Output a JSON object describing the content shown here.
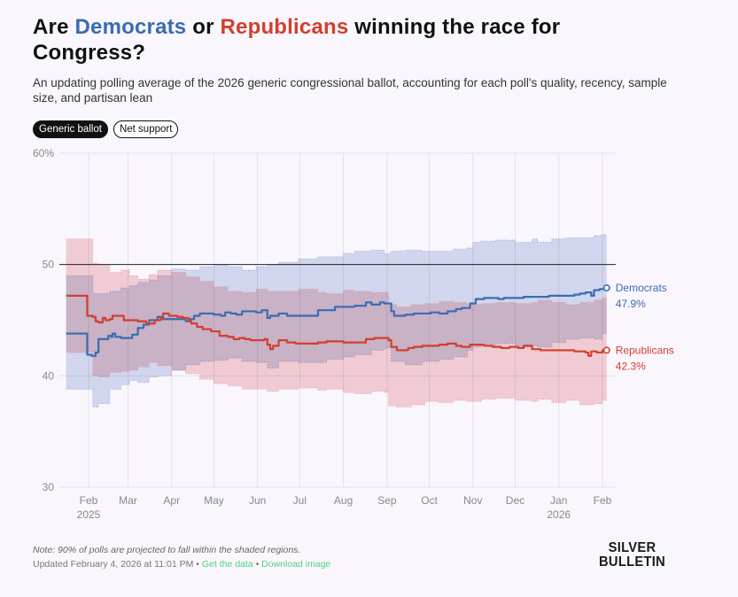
{
  "header": {
    "title_parts": [
      "Are ",
      "Democrats",
      " or ",
      "Republicans",
      " winning the race for Congress?"
    ],
    "subtitle": "An updating polling average of the 2026 generic congressional ballot, accounting for each poll's quality, recency, sample size, and partisan lean"
  },
  "toggles": [
    {
      "label": "Generic ballot",
      "active": true
    },
    {
      "label": "Net support",
      "active": false
    }
  ],
  "colors": {
    "democrats": "#3a6cb0",
    "republicans": "#d13f2c",
    "dem_band": "#c8d3ea",
    "rep_band": "#f2c4c6",
    "link": "#4ed67a"
  },
  "footer": {
    "note": "Note: 90% of polls are projected to fall within the shaded regions.",
    "updated": "Updated February 4, 2026 at 11:01 PM",
    "separator": " • ",
    "get_data": "Get the data",
    "download_image": "Download image",
    "logo_line1": "SILVER",
    "logo_line2": "BULLETIN"
  },
  "chart_data": {
    "type": "line",
    "title": "Are Democrats or Republicans winning the race for Congress?",
    "xlabel": "",
    "ylabel": "",
    "x_unit": "days since 2025-01-01",
    "xlim": [
      15,
      399
    ],
    "ylim": [
      30,
      60
    ],
    "yticks": [
      {
        "value": 30,
        "label": "30"
      },
      {
        "value": 40,
        "label": "40"
      },
      {
        "value": 50,
        "label": "50"
      },
      {
        "value": 60,
        "label": "60%"
      }
    ],
    "reference_line": 50,
    "grid": true,
    "xticks": [
      {
        "day": 31,
        "label": "Feb",
        "sublabel": "2025"
      },
      {
        "day": 59,
        "label": "Mar"
      },
      {
        "day": 90,
        "label": "Apr"
      },
      {
        "day": 120,
        "label": "May"
      },
      {
        "day": 151,
        "label": "Jun"
      },
      {
        "day": 181,
        "label": "Jul"
      },
      {
        "day": 212,
        "label": "Aug"
      },
      {
        "day": 243,
        "label": "Sep"
      },
      {
        "day": 273,
        "label": "Oct"
      },
      {
        "day": 304,
        "label": "Nov"
      },
      {
        "day": 334,
        "label": "Dec"
      },
      {
        "day": 365,
        "label": "Jan",
        "sublabel": "2026"
      },
      {
        "day": 396,
        "label": "Feb"
      }
    ],
    "series": [
      {
        "name": "Democrats",
        "final_label": "47.9%",
        "x": [
          15,
          29,
          30,
          33,
          36,
          38,
          43,
          45,
          47,
          48,
          50,
          52,
          54,
          58,
          62,
          66,
          70,
          74,
          78,
          80,
          83,
          88,
          95,
          100,
          103,
          106,
          110,
          114,
          120,
          125,
          128,
          132,
          136,
          140,
          145,
          150,
          154,
          158,
          160,
          166,
          172,
          180,
          188,
          194,
          200,
          206,
          212,
          220,
          228,
          232,
          238,
          241,
          246,
          248,
          252,
          256,
          262,
          268,
          274,
          280,
          286,
          292,
          296,
          302,
          306,
          312,
          318,
          322,
          326,
          332,
          336,
          340,
          346,
          352,
          358,
          364,
          370,
          376,
          380,
          384,
          388,
          390,
          394,
          396,
          399
        ],
        "values": [
          43.8,
          43.8,
          41.9,
          41.8,
          42.1,
          43.3,
          43.3,
          43.6,
          43.5,
          43.8,
          43.5,
          43.5,
          43.4,
          43.4,
          43.7,
          44.3,
          44.6,
          45.0,
          45.0,
          45.3,
          45.1,
          45.1,
          45.1,
          44.9,
          45.1,
          45.4,
          45.6,
          45.6,
          45.5,
          45.4,
          45.7,
          45.6,
          45.5,
          45.8,
          45.8,
          45.7,
          45.9,
          45.2,
          45.4,
          45.6,
          45.4,
          45.4,
          45.4,
          45.9,
          45.9,
          46.2,
          46.2,
          46.3,
          46.6,
          46.4,
          46.6,
          46.5,
          45.8,
          45.4,
          45.4,
          45.5,
          45.6,
          45.6,
          45.7,
          45.6,
          45.8,
          46.0,
          46.1,
          46.5,
          46.9,
          47.0,
          47.0,
          46.9,
          47.0,
          47.0,
          47.0,
          47.1,
          47.1,
          47.1,
          47.2,
          47.2,
          47.2,
          47.3,
          47.4,
          47.5,
          47.2,
          47.7,
          47.8,
          47.8,
          47.9
        ]
      },
      {
        "name": "Republicans",
        "final_label": "42.3%",
        "x": [
          15,
          29,
          30,
          34,
          36,
          38,
          41,
          43,
          46,
          48,
          52,
          56,
          58,
          62,
          66,
          68,
          72,
          74,
          78,
          82,
          84,
          88,
          94,
          98,
          102,
          104,
          108,
          112,
          118,
          124,
          130,
          134,
          138,
          142,
          146,
          150,
          156,
          158,
          160,
          162,
          166,
          172,
          178,
          186,
          194,
          200,
          206,
          212,
          220,
          228,
          234,
          238,
          241,
          244,
          246,
          250,
          254,
          258,
          262,
          268,
          274,
          280,
          286,
          292,
          296,
          302,
          306,
          312,
          318,
          324,
          330,
          336,
          340,
          346,
          352,
          358,
          364,
          370,
          376,
          380,
          384,
          386,
          388,
          392,
          396,
          399
        ],
        "values": [
          47.2,
          47.2,
          45.4,
          45.3,
          44.9,
          44.8,
          45.2,
          45.0,
          45.1,
          45.4,
          45.4,
          45.0,
          45.0,
          45.0,
          44.9,
          44.9,
          44.7,
          44.7,
          45.0,
          45.1,
          45.6,
          45.4,
          45.3,
          45.2,
          44.9,
          44.7,
          44.4,
          44.2,
          44.0,
          43.6,
          43.5,
          43.3,
          43.4,
          43.3,
          43.2,
          43.2,
          43.3,
          42.8,
          42.4,
          42.7,
          43.2,
          43.0,
          42.9,
          42.9,
          43.0,
          43.1,
          43.1,
          43.0,
          43.0,
          43.3,
          43.4,
          43.4,
          43.4,
          43.2,
          42.6,
          42.3,
          42.3,
          42.5,
          42.6,
          42.7,
          42.7,
          42.8,
          42.9,
          42.7,
          42.6,
          42.8,
          42.8,
          42.7,
          42.6,
          42.5,
          42.6,
          42.5,
          42.7,
          42.4,
          42.3,
          42.3,
          42.3,
          42.3,
          42.2,
          42.2,
          42.1,
          41.8,
          42.2,
          42.1,
          42.3,
          42.3
        ]
      }
    ],
    "bands": [
      {
        "name": "Democrats 90% range",
        "x": [
          15,
          30,
          34,
          38,
          46,
          54,
          60,
          66,
          74,
          80,
          90,
          100,
          110,
          120,
          130,
          140,
          150,
          158,
          166,
          180,
          194,
          200,
          212,
          220,
          232,
          241,
          246,
          256,
          268,
          280,
          290,
          300,
          304,
          310,
          320,
          334,
          346,
          350,
          360,
          370,
          380,
          390,
          396,
          399
        ],
        "upper": [
          49.0,
          49.0,
          47.4,
          47.4,
          47.6,
          47.9,
          48.1,
          48.4,
          48.6,
          49.0,
          49.6,
          49.5,
          49.8,
          50.0,
          49.8,
          49.5,
          49.8,
          50.0,
          50.2,
          50.5,
          50.7,
          50.7,
          51.0,
          51.2,
          51.3,
          51.0,
          51.2,
          51.3,
          51.2,
          51.2,
          51.4,
          51.5,
          52.0,
          52.1,
          52.2,
          52.0,
          52.3,
          52.0,
          52.3,
          52.4,
          52.4,
          52.6,
          52.7,
          52.7
        ],
        "lower": [
          38.8,
          38.8,
          37.2,
          37.5,
          38.8,
          39.2,
          39.6,
          39.4,
          39.9,
          40.0,
          40.5,
          41.0,
          41.3,
          41.4,
          41.6,
          41.3,
          41.2,
          40.7,
          41.3,
          41.2,
          41.2,
          41.5,
          41.7,
          41.9,
          42.3,
          42.5,
          41.3,
          41.0,
          41.3,
          41.5,
          41.7,
          42.3,
          42.6,
          42.7,
          42.9,
          42.6,
          42.7,
          42.6,
          43.0,
          43.3,
          43.4,
          43.3,
          43.8,
          43.9
        ]
      },
      {
        "name": "Republicans 90% range",
        "x": [
          15,
          30,
          34,
          38,
          46,
          54,
          60,
          66,
          74,
          80,
          90,
          100,
          110,
          120,
          130,
          140,
          150,
          158,
          166,
          180,
          194,
          200,
          212,
          220,
          232,
          241,
          244,
          250,
          260,
          270,
          280,
          290,
          300,
          310,
          320,
          334,
          346,
          350,
          360,
          370,
          380,
          390,
          396,
          399
        ],
        "upper": [
          52.3,
          52.3,
          50.1,
          50.0,
          49.3,
          49.5,
          49.0,
          48.7,
          49.1,
          49.5,
          49.3,
          48.9,
          48.5,
          48.0,
          47.6,
          47.5,
          47.8,
          47.6,
          47.6,
          47.8,
          47.5,
          47.4,
          47.7,
          47.6,
          47.5,
          47.5,
          46.4,
          46.2,
          46.4,
          46.5,
          46.7,
          46.6,
          46.4,
          46.5,
          46.6,
          46.5,
          46.6,
          46.8,
          46.6,
          46.4,
          46.6,
          46.8,
          47.0,
          47.0
        ],
        "lower": [
          42.1,
          42.1,
          40.0,
          39.9,
          40.3,
          40.4,
          40.5,
          40.8,
          41.2,
          40.9,
          40.5,
          40.2,
          39.7,
          39.3,
          39.1,
          38.8,
          38.8,
          38.6,
          38.8,
          38.9,
          38.7,
          38.8,
          38.5,
          38.4,
          38.6,
          38.5,
          37.3,
          37.2,
          37.4,
          37.7,
          37.6,
          37.8,
          37.7,
          37.9,
          38.0,
          37.8,
          37.7,
          37.9,
          37.6,
          37.8,
          37.4,
          37.5,
          37.8,
          37.9
        ]
      }
    ]
  }
}
